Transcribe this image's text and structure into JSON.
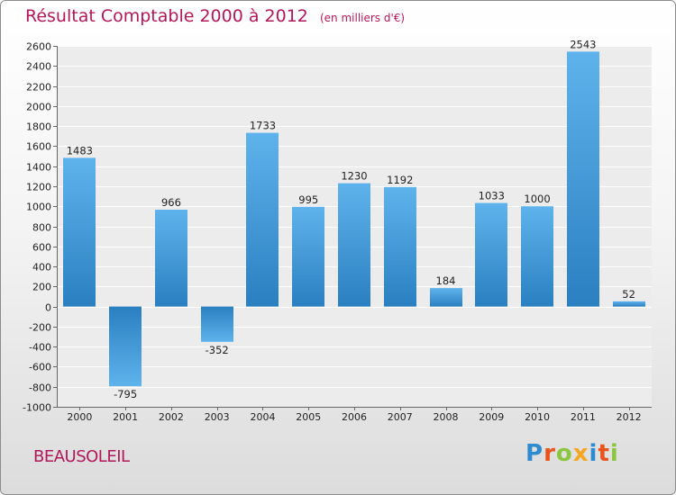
{
  "chart_data": {
    "type": "bar",
    "title": "Résultat Comptable 2000 à 2012",
    "subtitle": "(en milliers d'€)",
    "xlabel": "",
    "ylabel": "",
    "ylim": [
      -1000,
      2600
    ],
    "yticks": [
      -1000,
      -800,
      -600,
      -400,
      -200,
      0,
      200,
      400,
      600,
      800,
      1000,
      1200,
      1400,
      1600,
      1800,
      2000,
      2200,
      2400,
      2600
    ],
    "grid": true,
    "categories": [
      "2000",
      "2001",
      "2002",
      "2003",
      "2004",
      "2005",
      "2006",
      "2007",
      "2008",
      "2009",
      "2010",
      "2011",
      "2012"
    ],
    "values": [
      1483,
      -795,
      966,
      -352,
      1733,
      995,
      1230,
      1192,
      184,
      1033,
      1000,
      2543,
      52
    ],
    "series_color": "#4a9ede"
  },
  "footer": {
    "town": "BEAUSOLEIL",
    "logo_letters": [
      {
        "ch": "P",
        "color": "#2e8bd0"
      },
      {
        "ch": "r",
        "color": "#e8541c"
      },
      {
        "ch": "o",
        "color": "#8cc63f"
      },
      {
        "ch": "x",
        "color": "#f5a623"
      },
      {
        "ch": "i",
        "color": "#2e8bd0"
      },
      {
        "ch": "t",
        "color": "#e8541c"
      },
      {
        "ch": "i",
        "color": "#8cc63f"
      }
    ]
  }
}
